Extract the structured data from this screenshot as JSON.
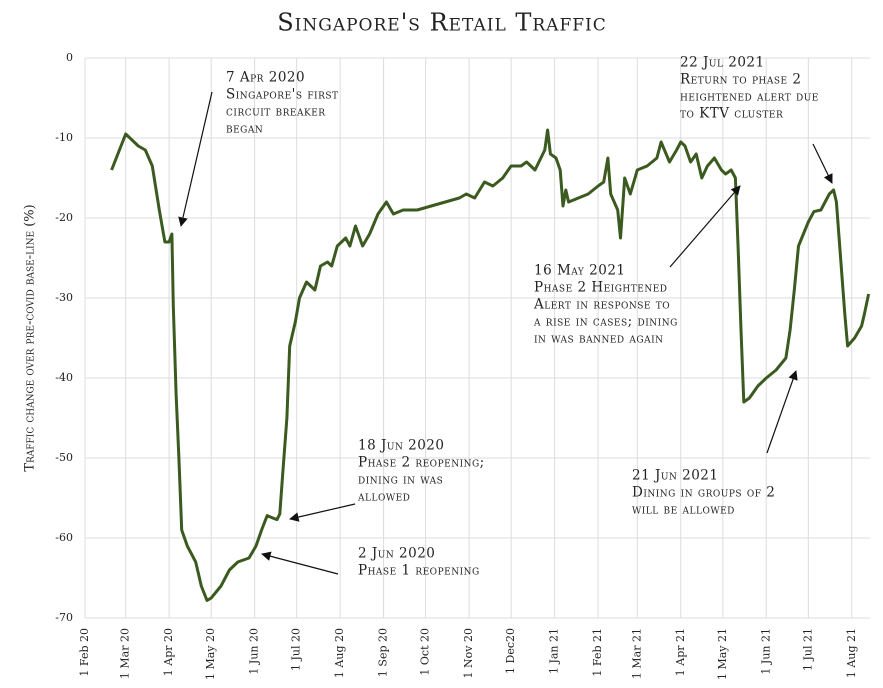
{
  "chart_data": {
    "type": "line",
    "title": "Singapore's Retail Traffic",
    "y_label": "Traffic change over pre-covid base-line (%)",
    "xlim": [
      "2020-02-01",
      "2021-08-14"
    ],
    "xticks": [
      {
        "value": "2020-02-01",
        "label": "1 Feb 20"
      },
      {
        "value": "2020-03-01",
        "label": "1 Mar 20"
      },
      {
        "value": "2020-04-01",
        "label": "1 Apr 20"
      },
      {
        "value": "2020-05-01",
        "label": "1 May 20"
      },
      {
        "value": "2020-06-01",
        "label": "1 Jun 20"
      },
      {
        "value": "2020-07-01",
        "label": "1 Jul 20"
      },
      {
        "value": "2020-08-01",
        "label": "1 Aug 20"
      },
      {
        "value": "2020-09-01",
        "label": "1 Sep 20"
      },
      {
        "value": "2020-10-01",
        "label": "1 Oct 20"
      },
      {
        "value": "2020-11-01",
        "label": "1 Nov 20"
      },
      {
        "value": "2020-12-01",
        "label": "1 Dec20"
      },
      {
        "value": "2021-01-01",
        "label": "1 Jan 21"
      },
      {
        "value": "2021-02-01",
        "label": "1 Feb 21"
      },
      {
        "value": "2021-03-01",
        "label": "1 Mar 21"
      },
      {
        "value": "2021-04-01",
        "label": "1 Apr 21"
      },
      {
        "value": "2021-05-01",
        "label": "1 May 21"
      },
      {
        "value": "2021-06-01",
        "label": "1 Jun 21"
      },
      {
        "value": "2021-07-01",
        "label": "1 Jul 21"
      },
      {
        "value": "2021-08-01",
        "label": "1 Aug 21"
      }
    ],
    "ylim": [
      -70,
      0
    ],
    "yticks": [
      0,
      -10,
      -20,
      -30,
      -40,
      -50,
      -60,
      -70
    ],
    "grid": true,
    "x": [
      "2020-02-20",
      "2020-03-01",
      "2020-03-10",
      "2020-03-15",
      "2020-03-20",
      "2020-03-25",
      "2020-03-29",
      "2020-04-01",
      "2020-04-03",
      "2020-04-04",
      "2020-04-06",
      "2020-04-08",
      "2020-04-10",
      "2020-04-14",
      "2020-04-20",
      "2020-04-24",
      "2020-04-28",
      "2020-05-01",
      "2020-05-08",
      "2020-05-14",
      "2020-05-20",
      "2020-05-28",
      "2020-06-02",
      "2020-06-06",
      "2020-06-10",
      "2020-06-14",
      "2020-06-17",
      "2020-06-19",
      "2020-06-21",
      "2020-06-24",
      "2020-06-26",
      "2020-06-30",
      "2020-07-03",
      "2020-07-08",
      "2020-07-14",
      "2020-07-18",
      "2020-07-23",
      "2020-07-26",
      "2020-07-30",
      "2020-08-05",
      "2020-08-08",
      "2020-08-12",
      "2020-08-17",
      "2020-08-22",
      "2020-08-28",
      "2020-09-03",
      "2020-09-08",
      "2020-09-15",
      "2020-09-25",
      "2020-10-05",
      "2020-10-15",
      "2020-10-25",
      "2020-10-30",
      "2020-11-05",
      "2020-11-12",
      "2020-11-18",
      "2020-11-25",
      "2020-12-01",
      "2020-12-08",
      "2020-12-12",
      "2020-12-18",
      "2020-12-25",
      "2020-12-27",
      "2020-12-29",
      "2021-01-02",
      "2021-01-05",
      "2021-01-07",
      "2021-01-09",
      "2021-01-11",
      "2021-01-18",
      "2021-01-25",
      "2021-02-01",
      "2021-02-05",
      "2021-02-08",
      "2021-02-10",
      "2021-02-15",
      "2021-02-17",
      "2021-02-20",
      "2021-02-24",
      "2021-03-01",
      "2021-03-08",
      "2021-03-15",
      "2021-03-18",
      "2021-03-24",
      "2021-03-29",
      "2021-04-01",
      "2021-04-04",
      "2021-04-08",
      "2021-04-12",
      "2021-04-16",
      "2021-04-20",
      "2021-04-25",
      "2021-04-30",
      "2021-05-03",
      "2021-05-07",
      "2021-05-10",
      "2021-05-12",
      "2021-05-14",
      "2021-05-16",
      "2021-05-20",
      "2021-05-26",
      "2021-06-01",
      "2021-06-08",
      "2021-06-15",
      "2021-06-18",
      "2021-06-21",
      "2021-06-24",
      "2021-07-01",
      "2021-07-05",
      "2021-07-10",
      "2021-07-16",
      "2021-07-19",
      "2021-07-21",
      "2021-07-24",
      "2021-07-27",
      "2021-07-29",
      "2021-08-03",
      "2021-08-08",
      "2021-08-10",
      "2021-08-13"
    ],
    "series": [
      {
        "name": "Retail traffic",
        "color": "#3b5a1f",
        "values": [
          -14,
          -9.5,
          -11,
          -11.5,
          -13.5,
          -19,
          -23,
          -23,
          -22,
          -31,
          -42,
          -50,
          -59,
          -61,
          -63,
          -66,
          -67.8,
          -67.5,
          -66,
          -64,
          -63,
          -62.5,
          -61,
          -59,
          -57.2,
          -57.5,
          -57.7,
          -57,
          -52,
          -45,
          -36,
          -33,
          -30,
          -28,
          -29,
          -26,
          -25.5,
          -26,
          -23.5,
          -22.5,
          -23.5,
          -21,
          -23.5,
          -22,
          -19.5,
          -18,
          -19.5,
          -19,
          -19,
          -18.5,
          -18,
          -17.5,
          -17,
          -17.5,
          -15.5,
          -16,
          -15,
          -13.5,
          -13.5,
          -13,
          -14,
          -11.5,
          -9,
          -12,
          -12.5,
          -14,
          -18.5,
          -16.5,
          -18,
          -17.5,
          -17,
          -16,
          -15.5,
          -12.5,
          -17,
          -19,
          -22.5,
          -15,
          -17,
          -14,
          -13.5,
          -12.5,
          -10.5,
          -13,
          -11.5,
          -10.5,
          -11,
          -13,
          -12,
          -15,
          -13.5,
          -12.5,
          -14,
          -14.5,
          -14,
          -15,
          -24,
          -34,
          -43,
          -42.5,
          -41,
          -40,
          -39,
          -37.5,
          -34,
          -29,
          -23.5,
          -20.5,
          -19.2,
          -19,
          -17,
          -16.5,
          -18,
          -25,
          -32,
          -36,
          -35,
          -33.5,
          -32,
          -29.5
        ]
      }
    ],
    "annotations": [
      {
        "lines": [
          "7 Apr 2020",
          "Singapore's first",
          "circuit breaker",
          "began"
        ]
      },
      {
        "lines": [
          "18 Jun 2020",
          "Phase 2 reopening;",
          "dining in was",
          "allowed"
        ]
      },
      {
        "lines": [
          "2 Jun 2020",
          "Phase 1 reopening"
        ]
      },
      {
        "lines": [
          "16 May 2021",
          "Phase 2 Heightened",
          "Alert in response to",
          "a rise in cases; dining",
          "in was banned again"
        ]
      },
      {
        "lines": [
          "21 Jun 2021",
          "Dining in groups of 2",
          "will be allowed"
        ]
      },
      {
        "lines": [
          "22 Jul 2021",
          "Return to phase 2",
          "heightened alert due",
          "to KTV cluster"
        ]
      }
    ]
  }
}
